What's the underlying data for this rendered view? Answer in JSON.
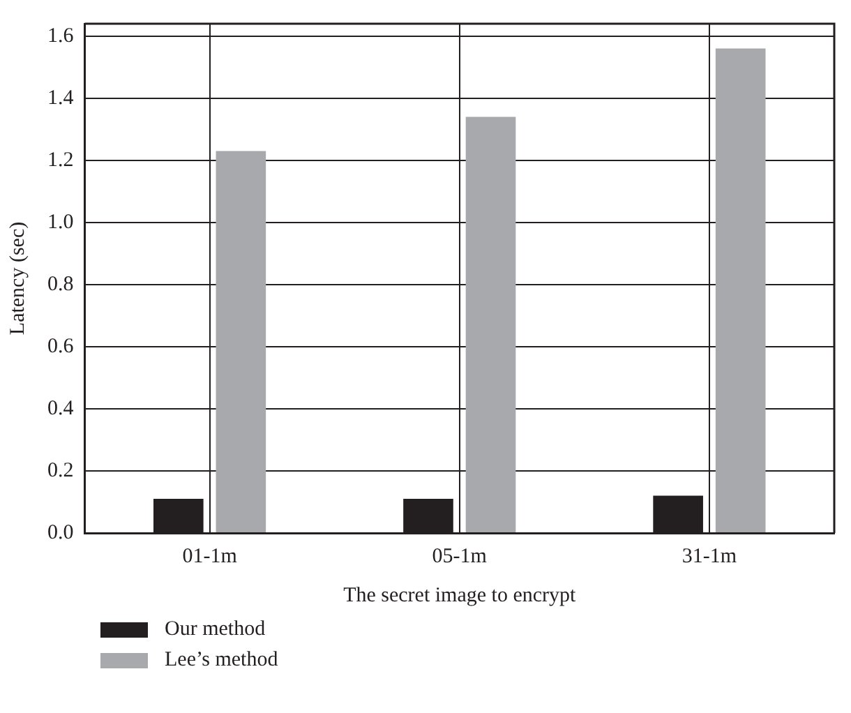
{
  "chart_data": {
    "type": "bar",
    "xlabel": "The secret image to encrypt",
    "ylabel": "Latency (sec)",
    "categories": [
      "01-1m",
      "05-1m",
      "31-1m"
    ],
    "series": [
      {
        "name": "Our method",
        "color": "#231f20",
        "values": [
          0.11,
          0.11,
          0.12
        ]
      },
      {
        "name": "Lee’s method",
        "color": "#a7a9ac",
        "values": [
          1.23,
          1.34,
          1.56
        ]
      }
    ],
    "ylim": [
      0,
      1.64
    ],
    "yticks": [
      {
        "value": 0,
        "label": "0.0"
      },
      {
        "value": 0.2,
        "label": "0.2"
      },
      {
        "value": 0.4,
        "label": "0.4"
      },
      {
        "value": 0.6,
        "label": "0.6"
      },
      {
        "value": 0.8,
        "label": "0.8"
      },
      {
        "value": 1,
        "label": "1.0"
      },
      {
        "value": 1.2,
        "label": "1.2"
      },
      {
        "value": 1.4,
        "label": "1.4"
      },
      {
        "value": 1.6,
        "label": "1.6"
      }
    ],
    "grid": true,
    "legend": "bottom left"
  }
}
